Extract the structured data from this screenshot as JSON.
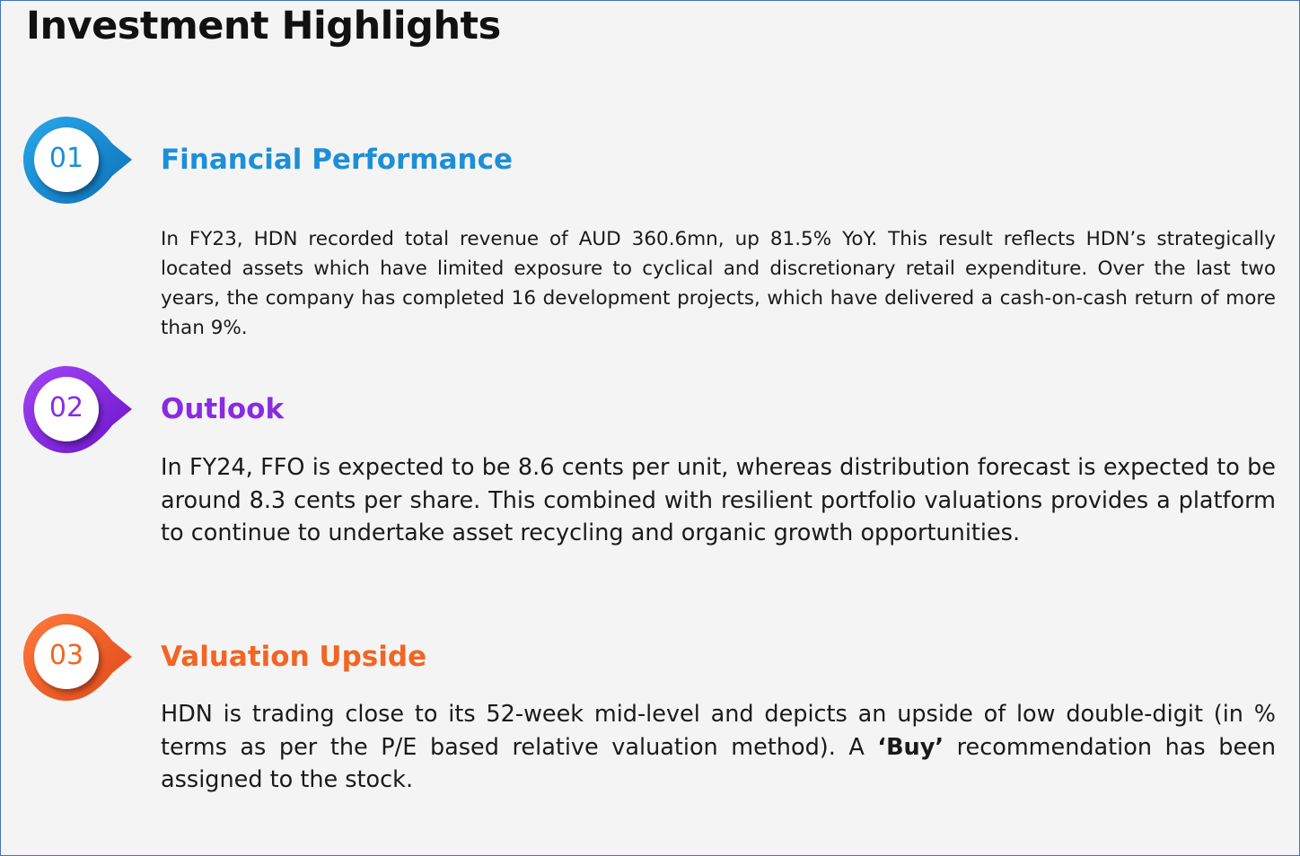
{
  "title": "Investment Highlights",
  "sections": [
    {
      "number": "01",
      "heading": "Financial Performance",
      "color": "#1d8fd6",
      "body": "In FY23, HDN recorded total revenue of AUD 360.6mn, up 81.5% YoY. This result reflects HDN’s strategically located assets which have limited exposure to cyclical and discretionary retail expenditure. Over the last two years, the company has completed 16 development projects, which have delivered a cash-on-cash return of more than 9%."
    },
    {
      "number": "02",
      "heading": "Outlook",
      "color": "#8a2be2",
      "body": "In FY24, FFO is expected to be 8.6 cents per unit, whereas distribution forecast is expected to be around 8.3 cents per share. This combined with resilient portfolio valuations provides a platform to continue to undertake asset recycling and organic growth opportunities."
    },
    {
      "number": "03",
      "heading": "Valuation Upside",
      "color": "#f26522",
      "body_before": "HDN is trading close to its 52-week mid-level and depicts an upside of low double-digit (in % terms as per the P/E based relative valuation method). A ",
      "body_bold": "‘Buy’",
      "body_after": " recommendation has been assigned to the stock."
    }
  ]
}
